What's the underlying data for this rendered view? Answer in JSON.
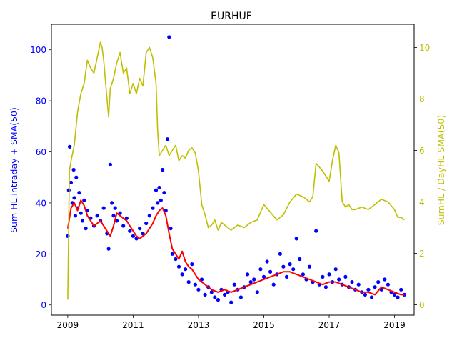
{
  "chart_data": {
    "type": "scatter",
    "title": "EURHUF",
    "xlabel": "",
    "ylabel_left": "Sum HL intraday + SMA(50)",
    "ylabel_right": "SumHL / DayHL SMA(50)",
    "x_ticks": [
      "2009",
      "2011",
      "2013",
      "2015",
      "2017",
      "2019"
    ],
    "y_left_ticks": [
      0,
      20,
      40,
      60,
      80,
      100
    ],
    "y_right_ticks": [
      0,
      2,
      4,
      6,
      8,
      10
    ],
    "xlim": [
      2008.5,
      2019.6
    ],
    "ylim_left": [
      -4,
      110
    ],
    "ylim_right": [
      -0.4,
      10.9
    ],
    "grid": false,
    "legend": "none",
    "colors": {
      "scatter": "#0000ff",
      "sma": "#ff0000",
      "ratio": "#bfbf00",
      "left_axis": "#0000ff",
      "right_axis": "#bfbf00",
      "frame": "#000000"
    },
    "series": [
      {
        "axis": "left",
        "type": "scatter",
        "color": "#0000ff",
        "x": [
          2009.0,
          2009.03,
          2009.06,
          2009.1,
          2009.14,
          2009.18,
          2009.2,
          2009.23,
          2009.26,
          2009.3,
          2009.35,
          2009.4,
          2009.45,
          2009.5,
          2009.55,
          2009.6,
          2009.7,
          2009.8,
          2009.9,
          2010.0,
          2010.1,
          2010.2,
          2010.25,
          2010.3,
          2010.35,
          2010.4,
          2010.45,
          2010.5,
          2010.6,
          2010.7,
          2010.8,
          2010.9,
          2011.0,
          2011.1,
          2011.2,
          2011.3,
          2011.4,
          2011.5,
          2011.6,
          2011.7,
          2011.75,
          2011.8,
          2011.85,
          2011.9,
          2011.95,
          2012.0,
          2012.05,
          2012.1,
          2012.15,
          2012.2,
          2012.3,
          2012.4,
          2012.5,
          2012.6,
          2012.7,
          2012.8,
          2012.9,
          2013.0,
          2013.1,
          2013.2,
          2013.3,
          2013.4,
          2013.5,
          2013.6,
          2013.7,
          2013.8,
          2013.9,
          2014.0,
          2014.1,
          2014.2,
          2014.3,
          2014.4,
          2014.5,
          2014.6,
          2014.7,
          2014.8,
          2014.9,
          2015.0,
          2015.1,
          2015.2,
          2015.3,
          2015.4,
          2015.5,
          2015.6,
          2015.7,
          2015.8,
          2015.9,
          2016.0,
          2016.1,
          2016.2,
          2016.3,
          2016.4,
          2016.5,
          2016.6,
          2016.7,
          2016.8,
          2016.9,
          2017.0,
          2017.1,
          2017.2,
          2017.3,
          2017.4,
          2017.5,
          2017.6,
          2017.7,
          2017.8,
          2017.9,
          2018.0,
          2018.1,
          2018.2,
          2018.3,
          2018.4,
          2018.5,
          2018.6,
          2018.7,
          2018.8,
          2018.9,
          2019.0,
          2019.1,
          2019.2,
          2019.3
        ],
        "y": [
          27,
          45,
          62,
          48,
          40,
          53,
          42,
          35,
          50,
          38,
          44,
          36,
          33,
          41,
          30,
          37,
          34,
          31,
          35,
          33,
          38,
          28,
          22,
          55,
          40,
          35,
          38,
          33,
          36,
          31,
          34,
          29,
          27,
          26,
          30,
          28,
          32,
          35,
          38,
          45,
          40,
          46,
          41,
          53,
          44,
          37,
          65,
          105,
          30,
          20,
          18,
          15,
          12,
          14,
          9,
          16,
          8,
          6,
          10,
          4,
          7,
          5,
          3,
          2,
          6,
          4,
          5,
          1,
          8,
          6,
          3,
          7,
          12,
          9,
          10,
          5,
          14,
          11,
          17,
          13,
          8,
          12,
          20,
          15,
          11,
          16,
          14,
          26,
          18,
          12,
          10,
          15,
          9,
          29,
          8,
          11,
          7,
          12,
          9,
          14,
          10,
          8,
          11,
          7,
          9,
          6,
          8,
          5,
          4,
          6,
          3,
          7,
          9,
          6,
          10,
          8,
          5,
          4,
          3,
          6,
          4
        ]
      },
      {
        "axis": "left",
        "type": "line",
        "name": "SMA(50)",
        "color": "#ff0000",
        "x": [
          2009.0,
          2009.1,
          2009.2,
          2009.3,
          2009.4,
          2009.5,
          2009.6,
          2009.7,
          2009.8,
          2009.9,
          2010.0,
          2010.1,
          2010.2,
          2010.3,
          2010.4,
          2010.5,
          2010.6,
          2010.7,
          2010.8,
          2010.9,
          2011.0,
          2011.1,
          2011.2,
          2011.3,
          2011.4,
          2011.5,
          2011.6,
          2011.7,
          2011.8,
          2011.9,
          2012.0,
          2012.1,
          2012.2,
          2012.3,
          2012.4,
          2012.5,
          2012.6,
          2012.7,
          2012.8,
          2012.9,
          2013.0,
          2013.2,
          2013.4,
          2013.6,
          2013.8,
          2014.0,
          2014.2,
          2014.4,
          2014.6,
          2014.8,
          2015.0,
          2015.2,
          2015.4,
          2015.6,
          2015.8,
          2016.0,
          2016.2,
          2016.4,
          2016.6,
          2016.8,
          2017.0,
          2017.2,
          2017.4,
          2017.6,
          2017.8,
          2018.0,
          2018.2,
          2018.4,
          2018.6,
          2018.8,
          2019.0,
          2019.2,
          2019.3
        ],
        "y": [
          30,
          38,
          40,
          37,
          41,
          39,
          35,
          33,
          31,
          32,
          33,
          31,
          29,
          27,
          31,
          36,
          35,
          34,
          33,
          31,
          29,
          27,
          26,
          27,
          28,
          30,
          32,
          35,
          37,
          38,
          35,
          28,
          22,
          20,
          18,
          21,
          17,
          15,
          14,
          12,
          10,
          8,
          6,
          5,
          6,
          5,
          6,
          7,
          8,
          9,
          10,
          11,
          12,
          13,
          13,
          12,
          11,
          10,
          9,
          8,
          9,
          9,
          8,
          7,
          6,
          5,
          5,
          4,
          7,
          6,
          5,
          4,
          4
        ]
      },
      {
        "axis": "right",
        "type": "line",
        "name": "SumHL / DayHL SMA(50)",
        "color": "#bfbf00",
        "x": [
          2009.0,
          2009.05,
          2009.1,
          2009.2,
          2009.3,
          2009.4,
          2009.5,
          2009.6,
          2009.7,
          2009.8,
          2009.9,
          2010.0,
          2010.05,
          2010.1,
          2010.2,
          2010.25,
          2010.3,
          2010.4,
          2010.5,
          2010.6,
          2010.7,
          2010.8,
          2010.9,
          2011.0,
          2011.1,
          2011.2,
          2011.3,
          2011.4,
          2011.5,
          2011.6,
          2011.7,
          2011.75,
          2011.8,
          2011.9,
          2012.0,
          2012.1,
          2012.2,
          2012.3,
          2012.4,
          2012.5,
          2012.6,
          2012.7,
          2012.8,
          2012.9,
          2013.0,
          2013.1,
          2013.2,
          2013.3,
          2013.4,
          2013.5,
          2013.6,
          2013.7,
          2013.8,
          2013.9,
          2014.0,
          2014.2,
          2014.4,
          2014.6,
          2014.8,
          2015.0,
          2015.2,
          2015.4,
          2015.6,
          2015.8,
          2016.0,
          2016.2,
          2016.4,
          2016.5,
          2016.6,
          2016.8,
          2017.0,
          2017.1,
          2017.2,
          2017.3,
          2017.4,
          2017.5,
          2017.6,
          2017.7,
          2017.8,
          2018.0,
          2018.2,
          2018.4,
          2018.6,
          2018.8,
          2019.0,
          2019.1,
          2019.2,
          2019.3
        ],
        "y": [
          0.2,
          5.2,
          5.6,
          6.2,
          7.5,
          8.2,
          8.6,
          9.5,
          9.2,
          9.0,
          9.6,
          10.2,
          10.0,
          9.5,
          8.0,
          7.3,
          8.4,
          8.8,
          9.4,
          9.8,
          9.0,
          9.2,
          8.2,
          8.6,
          8.2,
          8.8,
          8.5,
          9.8,
          10.0,
          9.6,
          8.6,
          6.8,
          5.8,
          6.0,
          6.2,
          5.8,
          6.0,
          6.2,
          5.6,
          5.8,
          5.7,
          6.0,
          6.1,
          5.9,
          5.2,
          3.9,
          3.5,
          3.0,
          3.1,
          3.3,
          2.9,
          3.2,
          3.1,
          3.0,
          2.9,
          3.1,
          3.0,
          3.2,
          3.3,
          3.9,
          3.6,
          3.3,
          3.5,
          4.0,
          4.3,
          4.2,
          4.0,
          4.2,
          5.5,
          5.2,
          4.8,
          5.6,
          6.2,
          5.9,
          4.0,
          3.8,
          3.9,
          3.7,
          3.7,
          3.8,
          3.7,
          3.9,
          4.1,
          4.0,
          3.7,
          3.4,
          3.4,
          3.3
        ]
      }
    ]
  }
}
